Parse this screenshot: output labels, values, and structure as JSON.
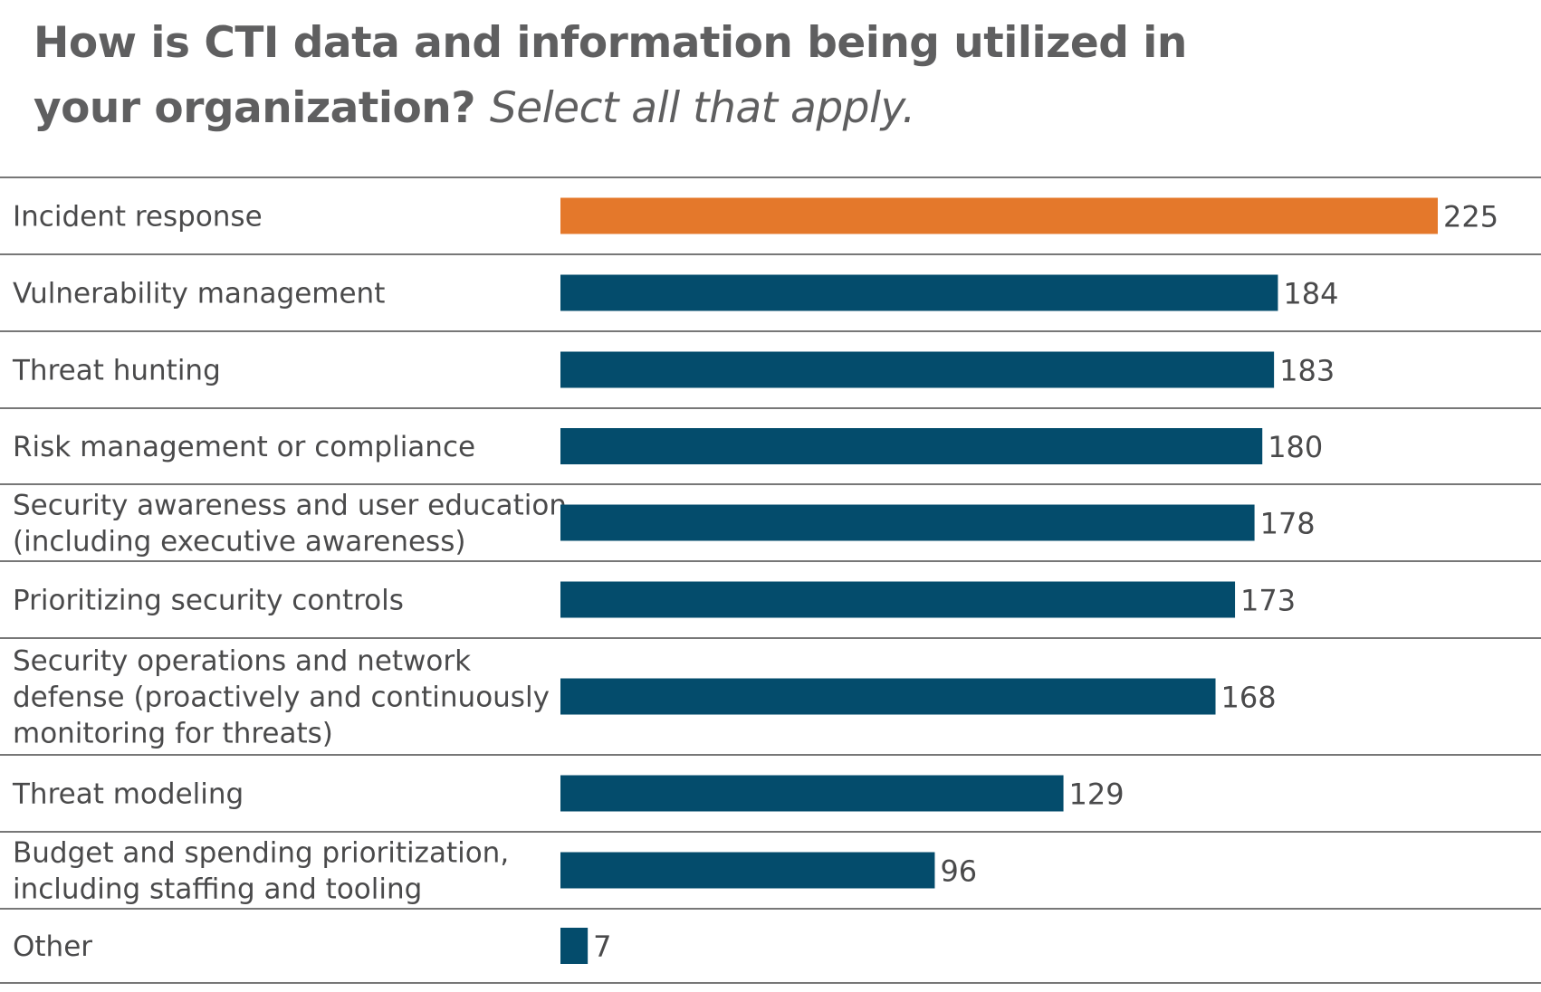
{
  "title": "How is CTI data and information being utilized in your organization?",
  "subtitle": "Select all that apply.",
  "colors": {
    "highlight": "#e4782b",
    "bar": "#044c6c",
    "text": "#4a4a4b",
    "title": "#5f5f60",
    "divider": "#4a4a4a"
  },
  "chart_data": {
    "type": "bar",
    "orientation": "horizontal",
    "title": "How is CTI data and information being utilized in your organization?",
    "subtitle": "Select all that apply.",
    "xlabel": "",
    "ylabel": "",
    "xlim": [
      0,
      225
    ],
    "grid": false,
    "legend": "none",
    "categories": [
      "Incident response",
      "Vulnerability management",
      "Threat hunting",
      "Risk management or compliance",
      "Security awareness and user education (including executive awareness)",
      "Prioritizing security controls",
      "Security operations and network defense (proactively and continuously monitoring for threats)",
      "Threat modeling",
      "Budget and spending prioritization, including staffing and tooling",
      "Other"
    ],
    "label_lines": [
      [
        "Incident response"
      ],
      [
        "Vulnerability management"
      ],
      [
        "Threat hunting"
      ],
      [
        "Risk management or compliance"
      ],
      [
        "Security awareness and user education",
        "(including executive awareness)"
      ],
      [
        "Prioritizing security controls"
      ],
      [
        "Security operations and network",
        "defense (proactively and continuously",
        "monitoring for threats)"
      ],
      [
        "Threat modeling"
      ],
      [
        "Budget and spending prioritization,",
        "including staffing and tooling"
      ],
      [
        "Other"
      ]
    ],
    "values": [
      225,
      184,
      183,
      180,
      178,
      173,
      168,
      129,
      96,
      7
    ],
    "highlighted": [
      "Incident response"
    ]
  }
}
